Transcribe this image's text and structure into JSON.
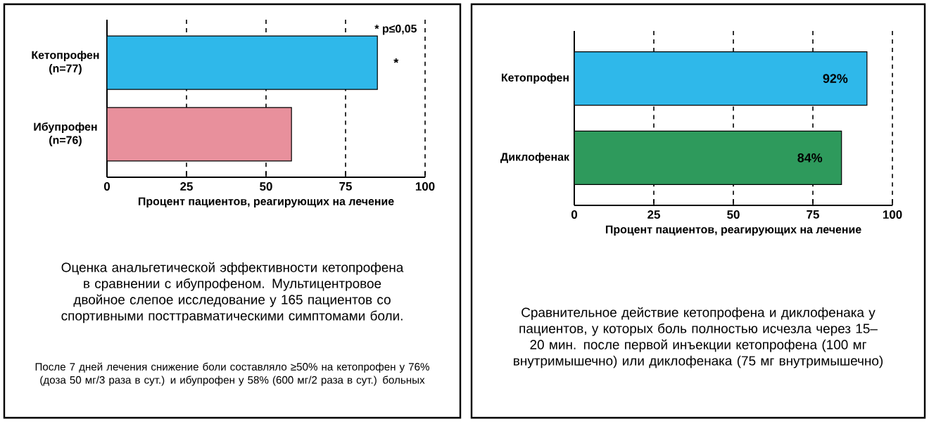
{
  "chart_data": [
    {
      "type": "bar",
      "orientation": "horizontal",
      "categories": [
        "Кетопрофен (n=77)",
        "Ибупрофен (n=76)"
      ],
      "values": [
        85,
        58
      ],
      "colors": [
        "#2fb8ea",
        "#e8909c"
      ],
      "xlim": [
        0,
        100
      ],
      "xticks": [
        0,
        25,
        50,
        75,
        100
      ],
      "grid": "x",
      "xlabel": "Процент  пациентов, реагирующих на лечение",
      "annotations": [
        "* p≤0,05",
        "*",
        "Оценка анальгетической эффективности кетопрофена в сравнении с ибупрофеном. Мультицентровое двойное слепое исследование у 165 пациентов со спортивными посттравматическими симптомами боли.",
        "После 7 дней лечения снижение боли составляло ≥50% на кетопрофен у 76% (доза 50 мг/3 раза в сут.) и ибупрофен у 58% (600 мг/2 раза в сут.) больных"
      ]
    },
    {
      "type": "bar",
      "orientation": "horizontal",
      "categories": [
        "Кетопрофен",
        "Диклофенак"
      ],
      "values": [
        92,
        84
      ],
      "value_labels": [
        "92%",
        "84%"
      ],
      "colors": [
        "#2fb8ea",
        "#2e9a5c"
      ],
      "xlim": [
        0,
        100
      ],
      "xticks": [
        0,
        25,
        50,
        75,
        100
      ],
      "grid": "x",
      "xlabel": "Процент пациентов, реагирующих на лечение",
      "annotations": [
        "Сравнительное действие кетопрофена и диклофенака у пациентов, у которых боль полностью исчезла через 15–20 мин. после первой инъекции кетопрофена (100  мг внутримышечно) или диклофенака (75 мг внутримышечно)"
      ]
    }
  ]
}
